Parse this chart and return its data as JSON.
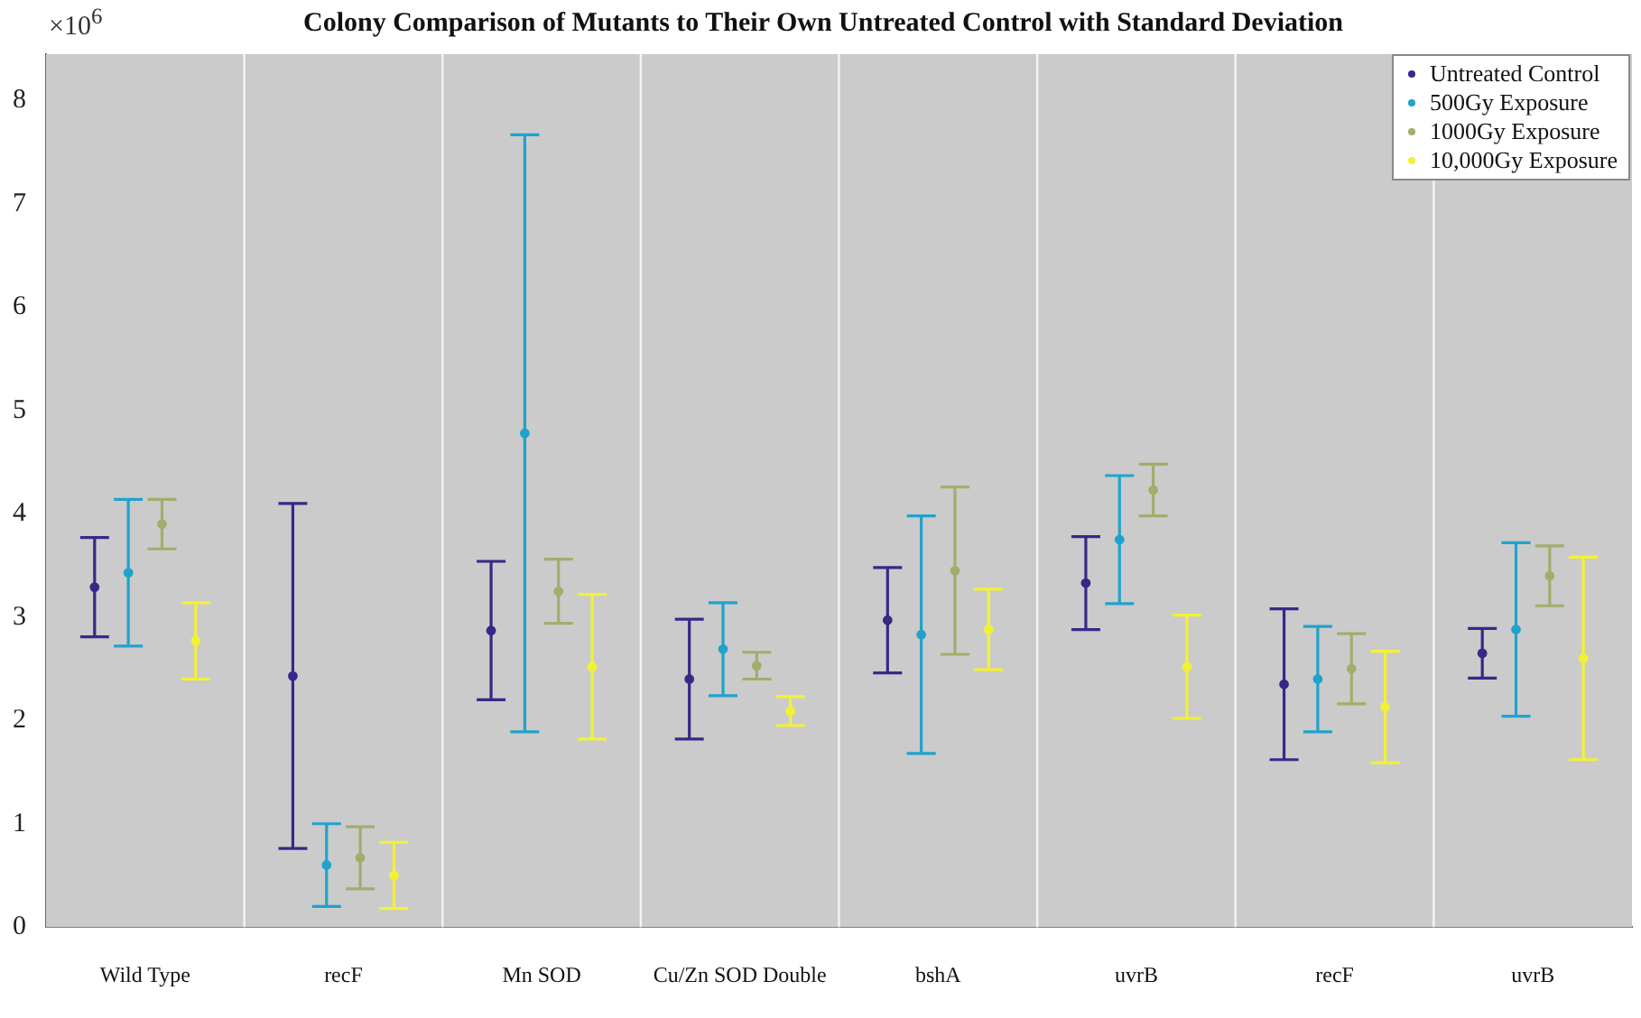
{
  "chart_data": {
    "type": "scatter",
    "title": "Colony Comparison of Mutants to Their Own Untreated Control with Standard Deviation",
    "categories": [
      "Wild Type",
      "recF",
      "Mn SOD",
      "Cu/Zn SOD Double",
      "bshA",
      "uvrB",
      "recF",
      "uvrB"
    ],
    "series": [
      {
        "name": "Untreated Control",
        "color": "#352a87",
        "values": [
          3.29,
          2.43,
          2.87,
          2.4,
          2.97,
          3.33,
          2.35,
          2.65
        ],
        "errors": [
          0.48,
          1.67,
          0.67,
          0.58,
          0.51,
          0.45,
          0.73,
          0.24
        ]
      },
      {
        "name": "500Gy Exposure",
        "color": "#1fa3cc",
        "values": [
          3.43,
          0.6,
          4.78,
          2.69,
          2.83,
          3.75,
          2.4,
          2.88
        ],
        "errors": [
          0.71,
          0.4,
          2.89,
          0.45,
          1.15,
          0.62,
          0.51,
          0.84
        ]
      },
      {
        "name": "1000Gy Exposure",
        "color": "#a5ac6c",
        "values": [
          3.9,
          0.67,
          3.25,
          2.53,
          3.45,
          4.23,
          2.5,
          3.4
        ],
        "errors": [
          0.24,
          0.3,
          0.31,
          0.13,
          0.81,
          0.25,
          0.34,
          0.29
        ]
      },
      {
        "name": "10,000Gy Exposure",
        "color": "#f2f234",
        "values": [
          2.77,
          0.5,
          2.52,
          2.09,
          2.88,
          2.52,
          2.13,
          2.6
        ],
        "errors": [
          0.37,
          0.32,
          0.7,
          0.14,
          0.39,
          0.5,
          0.54,
          0.98
        ]
      }
    ],
    "ylim": [
      0,
      8.45
    ],
    "yticks": [
      0,
      1,
      2,
      3,
      4,
      5,
      6,
      7,
      8
    ],
    "annotations": [
      "×10$^{6}$"
    ],
    "grid": "x",
    "legend": "top right",
    "marker": "circle"
  }
}
